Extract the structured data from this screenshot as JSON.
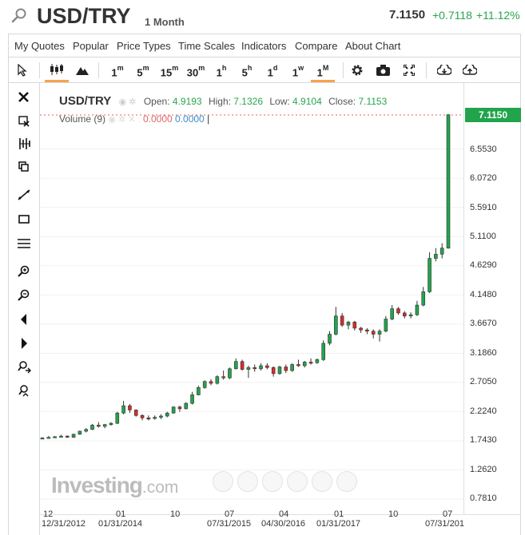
{
  "header": {
    "symbol": "USD/TRY",
    "period": "1 Month",
    "last": "7.1150",
    "change": "+0.7118",
    "change_pct": "+11.12%"
  },
  "menu": [
    "My Quotes",
    "Popular",
    "Price Types",
    "Time Scales",
    "Indicators",
    "Compare",
    "About Chart"
  ],
  "toolbar": {
    "intervals": [
      {
        "base": "1",
        "sup": "m"
      },
      {
        "base": "5",
        "sup": "m"
      },
      {
        "base": "15",
        "sup": "m"
      },
      {
        "base": "30",
        "sup": "m"
      },
      {
        "base": "1",
        "sup": "h"
      },
      {
        "base": "5",
        "sup": "h"
      },
      {
        "base": "1",
        "sup": "d"
      },
      {
        "base": "1",
        "sup": "w"
      },
      {
        "base": "1",
        "sup": "M"
      }
    ],
    "active_interval": "1M"
  },
  "left_tools": [
    "close-icon",
    "delete-drawing-icon",
    "fibonacci-icon",
    "copy-icon",
    "trendline-icon",
    "rectangle-icon",
    "horizontal-lines-icon",
    "zoom-in-icon",
    "zoom-out-icon",
    "scroll-left-icon",
    "scroll-right-icon",
    "zoom-reset-icon",
    "zoom-fit-icon"
  ],
  "legend": {
    "symbol": "USD/TRY",
    "open_label": "Open:",
    "open": "4.9193",
    "high_label": "High:",
    "high": "7.1326",
    "low_label": "Low:",
    "low": "4.9104",
    "close_label": "Close:",
    "close": "7.1153",
    "volume_label": "Volume (9)",
    "volume_a": "0.0000",
    "volume_b": "0.0000"
  },
  "price_badge": "7.1150",
  "watermark": {
    "main": "Investing",
    "suffix": ".com"
  },
  "colors": {
    "up": "#21a44c",
    "down": "#d92b2b",
    "badge": "#21a44c",
    "active_tab": "#f6a34c"
  },
  "chart_data": {
    "type": "candlestick",
    "y_ticks": [
      "6.5530",
      "6.0720",
      "5.5910",
      "5.1100",
      "4.6290",
      "4.1480",
      "3.6670",
      "3.1860",
      "2.7050",
      "2.2240",
      "1.7430",
      "1.2620",
      "0.7810"
    ],
    "x_major": [
      "12",
      "01",
      "10",
      "07",
      "04",
      "01",
      "10",
      "07"
    ],
    "x_minor": [
      "12/31/2012",
      "01/31/2014",
      "07/31/2015",
      "04/30/2016",
      "01/31/2017",
      "07/31/201"
    ],
    "ylim": [
      0.781,
      7.115
    ],
    "candles": [
      [
        1.78,
        1.8,
        1.77,
        1.79
      ],
      [
        1.79,
        1.82,
        1.78,
        1.8
      ],
      [
        1.8,
        1.82,
        1.79,
        1.81
      ],
      [
        1.81,
        1.84,
        1.8,
        1.82
      ],
      [
        1.82,
        1.83,
        1.79,
        1.8
      ],
      [
        1.8,
        1.86,
        1.79,
        1.85
      ],
      [
        1.85,
        1.91,
        1.84,
        1.9
      ],
      [
        1.9,
        1.95,
        1.88,
        1.93
      ],
      [
        1.93,
        2.02,
        1.92,
        2.0
      ],
      [
        2.0,
        2.05,
        1.96,
        1.98
      ],
      [
        1.98,
        2.02,
        1.95,
        2.01
      ],
      [
        2.01,
        2.05,
        1.99,
        2.03
      ],
      [
        2.03,
        2.22,
        2.02,
        2.2
      ],
      [
        2.2,
        2.4,
        2.18,
        2.32
      ],
      [
        2.32,
        2.35,
        2.2,
        2.25
      ],
      [
        2.25,
        2.26,
        2.14,
        2.16
      ],
      [
        2.16,
        2.18,
        2.08,
        2.12
      ],
      [
        2.12,
        2.16,
        2.08,
        2.11
      ],
      [
        2.11,
        2.16,
        2.09,
        2.13
      ],
      [
        2.13,
        2.18,
        2.1,
        2.15
      ],
      [
        2.15,
        2.22,
        2.13,
        2.2
      ],
      [
        2.2,
        2.31,
        2.19,
        2.3
      ],
      [
        2.3,
        2.32,
        2.22,
        2.27
      ],
      [
        2.27,
        2.38,
        2.26,
        2.36
      ],
      [
        2.36,
        2.55,
        2.34,
        2.5
      ],
      [
        2.5,
        2.65,
        2.49,
        2.62
      ],
      [
        2.62,
        2.74,
        2.6,
        2.72
      ],
      [
        2.72,
        2.76,
        2.66,
        2.69
      ],
      [
        2.69,
        2.82,
        2.67,
        2.8
      ],
      [
        2.8,
        2.9,
        2.75,
        2.78
      ],
      [
        2.78,
        2.95,
        2.76,
        2.93
      ],
      [
        2.93,
        3.1,
        2.92,
        3.05
      ],
      [
        3.05,
        3.08,
        2.9,
        2.92
      ],
      [
        2.92,
        2.98,
        2.78,
        2.95
      ],
      [
        2.95,
        3.0,
        2.88,
        2.93
      ],
      [
        2.93,
        3.02,
        2.9,
        2.98
      ],
      [
        2.98,
        3.02,
        2.92,
        2.95
      ],
      [
        2.95,
        2.97,
        2.8,
        2.85
      ],
      [
        2.85,
        2.98,
        2.83,
        2.96
      ],
      [
        2.96,
        3.0,
        2.86,
        2.9
      ],
      [
        2.9,
        3.02,
        2.88,
        3.0
      ],
      [
        3.0,
        3.08,
        2.96,
        2.98
      ],
      [
        2.98,
        3.06,
        2.95,
        3.04
      ],
      [
        3.04,
        3.1,
        3.0,
        3.03
      ],
      [
        3.03,
        3.1,
        3.01,
        3.08
      ],
      [
        3.08,
        3.4,
        3.06,
        3.35
      ],
      [
        3.35,
        3.55,
        3.32,
        3.5
      ],
      [
        3.5,
        3.95,
        3.48,
        3.8
      ],
      [
        3.8,
        3.85,
        3.62,
        3.65
      ],
      [
        3.65,
        3.72,
        3.58,
        3.7
      ],
      [
        3.7,
        3.72,
        3.56,
        3.6
      ],
      [
        3.6,
        3.62,
        3.52,
        3.57
      ],
      [
        3.57,
        3.6,
        3.5,
        3.55
      ],
      [
        3.55,
        3.58,
        3.43,
        3.5
      ],
      [
        3.5,
        3.58,
        3.38,
        3.55
      ],
      [
        3.55,
        3.8,
        3.53,
        3.75
      ],
      [
        3.75,
        3.98,
        3.73,
        3.92
      ],
      [
        3.92,
        3.95,
        3.82,
        3.85
      ],
      [
        3.85,
        3.88,
        3.76,
        3.8
      ],
      [
        3.8,
        3.86,
        3.76,
        3.82
      ],
      [
        3.82,
        4.05,
        3.8,
        3.98
      ],
      [
        3.98,
        4.28,
        3.96,
        4.2
      ],
      [
        4.2,
        4.85,
        4.18,
        4.75
      ],
      [
        4.75,
        4.92,
        4.7,
        4.82
      ],
      [
        4.82,
        5.0,
        4.75,
        4.92
      ],
      [
        4.92,
        7.13,
        4.91,
        7.12
      ]
    ]
  }
}
